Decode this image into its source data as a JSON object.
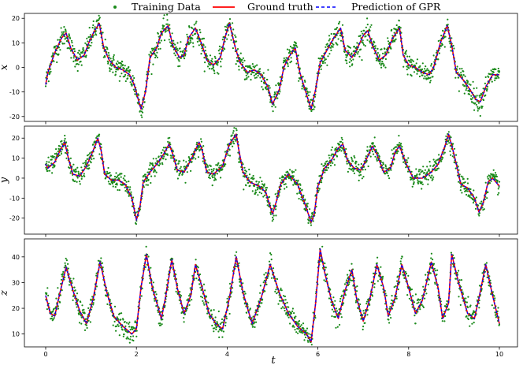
{
  "chart_data": {
    "type": "line",
    "xlabel": "t",
    "xlim": [
      0,
      10
    ],
    "xticks": [
      0,
      2,
      4,
      6,
      8,
      10
    ],
    "legend": {
      "placement": "top-center",
      "entries": [
        "Training Data",
        "Ground truth",
        "Prediction of GPR"
      ]
    },
    "colors": {
      "training": "#1a8a1a",
      "truth": "#ff0000",
      "prediction": "#0000ff"
    },
    "subplots": [
      {
        "ylabel": "x",
        "ylim": [
          -22,
          22
        ],
        "yticks": [
          -20,
          -10,
          0,
          10,
          20
        ],
        "noise": 2.2,
        "x": [
          0,
          0.05,
          0.2,
          0.35,
          0.45,
          0.55,
          0.7,
          0.85,
          0.95,
          1.05,
          1.18,
          1.28,
          1.4,
          1.55,
          1.7,
          1.85,
          1.95,
          2.1,
          2.2,
          2.3,
          2.45,
          2.55,
          2.7,
          2.8,
          2.95,
          3.05,
          3.15,
          3.3,
          3.45,
          3.55,
          3.7,
          3.85,
          3.95,
          4.05,
          4.18,
          4.28,
          4.45,
          4.6,
          4.75,
          4.9,
          5.0,
          5.15,
          5.25,
          5.35,
          5.5,
          5.6,
          5.75,
          5.85,
          5.95,
          6.05,
          6.2,
          6.35,
          6.5,
          6.6,
          6.75,
          6.85,
          7.0,
          7.1,
          7.2,
          7.35,
          7.5,
          7.65,
          7.8,
          7.88,
          8.0,
          8.15,
          8.3,
          8.45,
          8.55,
          8.7,
          8.85,
          8.95,
          9.05,
          9.2,
          9.35,
          9.48,
          9.58,
          9.7,
          9.85,
          10.0
        ],
        "y": [
          -7,
          -2,
          6,
          12,
          14,
          8,
          3,
          5,
          10,
          14,
          18,
          8,
          3,
          0,
          -1,
          -3,
          -7,
          -17,
          -10,
          4,
          8,
          14,
          17,
          9,
          4,
          5,
          12,
          16,
          9,
          3,
          1,
          4,
          12,
          18,
          8,
          2,
          -2,
          -1,
          -3,
          -8,
          -15,
          -9,
          0,
          4,
          8,
          -2,
          -11,
          -17,
          -9,
          2,
          7,
          12,
          16,
          7,
          4,
          7,
          13,
          15,
          9,
          3,
          5,
          12,
          16,
          5,
          1,
          0,
          -2,
          -3,
          0,
          10,
          17,
          9,
          -2,
          -5,
          -9,
          -13,
          -14,
          -8,
          -3,
          -3
        ]
      },
      {
        "ylabel": "y",
        "ylim": [
          -28,
          26
        ],
        "yticks": [
          -20,
          -10,
          0,
          10,
          20
        ],
        "noise": 2.2,
        "x": [
          0,
          0.05,
          0.2,
          0.3,
          0.42,
          0.5,
          0.6,
          0.75,
          0.9,
          1.05,
          1.15,
          1.22,
          1.3,
          1.45,
          1.6,
          1.75,
          1.9,
          2.0,
          2.08,
          2.15,
          2.3,
          2.45,
          2.6,
          2.72,
          2.8,
          2.9,
          3.05,
          3.2,
          3.38,
          3.45,
          3.55,
          3.7,
          3.9,
          4.05,
          4.2,
          4.25,
          4.35,
          4.5,
          4.7,
          4.85,
          5.0,
          5.08,
          5.18,
          5.35,
          5.55,
          5.7,
          5.85,
          5.92,
          6.0,
          6.15,
          6.3,
          6.45,
          6.55,
          6.65,
          6.8,
          6.95,
          7.1,
          7.2,
          7.3,
          7.45,
          7.6,
          7.7,
          7.8,
          7.95,
          8.1,
          8.3,
          8.5,
          8.65,
          8.8,
          8.88,
          9.0,
          9.15,
          9.3,
          9.45,
          9.55,
          9.65,
          9.75,
          9.85,
          10.0
        ],
        "y": [
          7,
          5,
          8,
          13,
          18,
          10,
          2,
          1,
          6,
          14,
          20,
          14,
          2,
          -1,
          -1,
          -3,
          -10,
          -21,
          -14,
          -2,
          3,
          7,
          12,
          17,
          12,
          4,
          3,
          9,
          18,
          14,
          3,
          2,
          6,
          17,
          22,
          15,
          3,
          -2,
          -4,
          -7,
          -18,
          -12,
          -3,
          2,
          -3,
          -12,
          -22,
          -18,
          -4,
          5,
          9,
          15,
          17,
          9,
          5,
          4,
          11,
          16,
          12,
          3,
          5,
          13,
          16,
          7,
          0,
          0,
          3,
          7,
          16,
          22,
          12,
          -3,
          -5,
          -10,
          -17,
          -12,
          -2,
          0,
          -4
        ]
      },
      {
        "ylabel": "z",
        "ylim": [
          5,
          47
        ],
        "yticks": [
          10,
          20,
          30,
          40
        ],
        "noise": 2.0,
        "x": [
          0,
          0.1,
          0.2,
          0.3,
          0.45,
          0.6,
          0.75,
          0.9,
          1.05,
          1.2,
          1.35,
          1.5,
          1.7,
          1.9,
          2.0,
          2.1,
          2.22,
          2.35,
          2.55,
          2.65,
          2.78,
          2.9,
          3.05,
          3.2,
          3.3,
          3.45,
          3.6,
          3.75,
          3.9,
          4.05,
          4.2,
          4.35,
          4.55,
          4.75,
          4.95,
          5.15,
          5.35,
          5.55,
          5.75,
          5.85,
          5.95,
          6.05,
          6.15,
          6.3,
          6.45,
          6.6,
          6.75,
          6.85,
          7.0,
          7.15,
          7.3,
          7.45,
          7.55,
          7.7,
          7.85,
          8.0,
          8.15,
          8.3,
          8.5,
          8.65,
          8.75,
          8.88,
          8.95,
          9.1,
          9.3,
          9.45,
          9.55,
          9.7,
          9.85,
          10.0
        ],
        "y": [
          25,
          18,
          17,
          25,
          36,
          27,
          19,
          14,
          24,
          38,
          26,
          17,
          13,
          10,
          12,
          28,
          41,
          28,
          16,
          25,
          39,
          28,
          18,
          25,
          37,
          28,
          18,
          14,
          12,
          24,
          40,
          26,
          14,
          24,
          37,
          26,
          18,
          13,
          10,
          7,
          22,
          43,
          34,
          23,
          16,
          27,
          35,
          24,
          15,
          24,
          37,
          28,
          17,
          24,
          37,
          28,
          18,
          23,
          38,
          28,
          16,
          22,
          41,
          30,
          18,
          16,
          24,
          37,
          25,
          14
        ]
      }
    ]
  }
}
